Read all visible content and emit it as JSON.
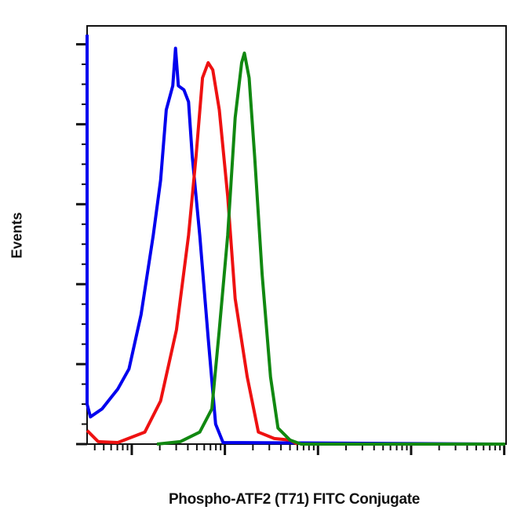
{
  "chart_data": {
    "type": "line",
    "title": "",
    "xlabel": "Phospho-ATF2 (T71) FITC Conjugate",
    "ylabel": "Events",
    "x_scale": "log",
    "xlim_decades": [
      0.52,
      5.02
    ],
    "ylim": [
      0,
      5.23
    ],
    "grid": false,
    "legend": "none",
    "series": [
      {
        "color": "#0000ee",
        "x": [
          0.52,
          0.52,
          0.555,
          0.68,
          0.85,
          0.97,
          1.1,
          1.23,
          1.31,
          1.37,
          1.44,
          1.47,
          1.5,
          1.56,
          1.61,
          1.65,
          1.73,
          1.82,
          1.9,
          1.98,
          4.97
        ],
        "y": [
          5.12,
          0.5,
          0.34,
          0.44,
          0.69,
          0.94,
          1.62,
          2.61,
          3.3,
          4.18,
          4.48,
          4.95,
          4.48,
          4.43,
          4.28,
          3.59,
          2.61,
          1.33,
          0.25,
          0.02,
          0
        ]
      },
      {
        "color": "#ee1111",
        "x": [
          0.52,
          0.64,
          0.85,
          1.14,
          1.31,
          1.48,
          1.61,
          1.69,
          1.76,
          1.82,
          1.87,
          1.94,
          2.03,
          2.11,
          2.24,
          2.36,
          2.53,
          2.7,
          2.78
        ],
        "y": [
          0.17,
          0.03,
          0.02,
          0.15,
          0.54,
          1.43,
          2.61,
          3.59,
          4.58,
          4.77,
          4.68,
          4.18,
          3.1,
          1.82,
          0.84,
          0.15,
          0.07,
          0.05,
          0
        ]
      },
      {
        "color": "#118811",
        "x": [
          1.27,
          1.52,
          1.73,
          1.86,
          1.94,
          2.03,
          2.11,
          2.18,
          2.21,
          2.26,
          2.32,
          2.4,
          2.49,
          2.57,
          2.7,
          2.82,
          5.01
        ],
        "y": [
          0,
          0.03,
          0.15,
          0.44,
          1.43,
          2.61,
          4.08,
          4.77,
          4.89,
          4.58,
          3.59,
          2.12,
          0.84,
          0.2,
          0.05,
          0,
          0
        ]
      }
    ]
  }
}
